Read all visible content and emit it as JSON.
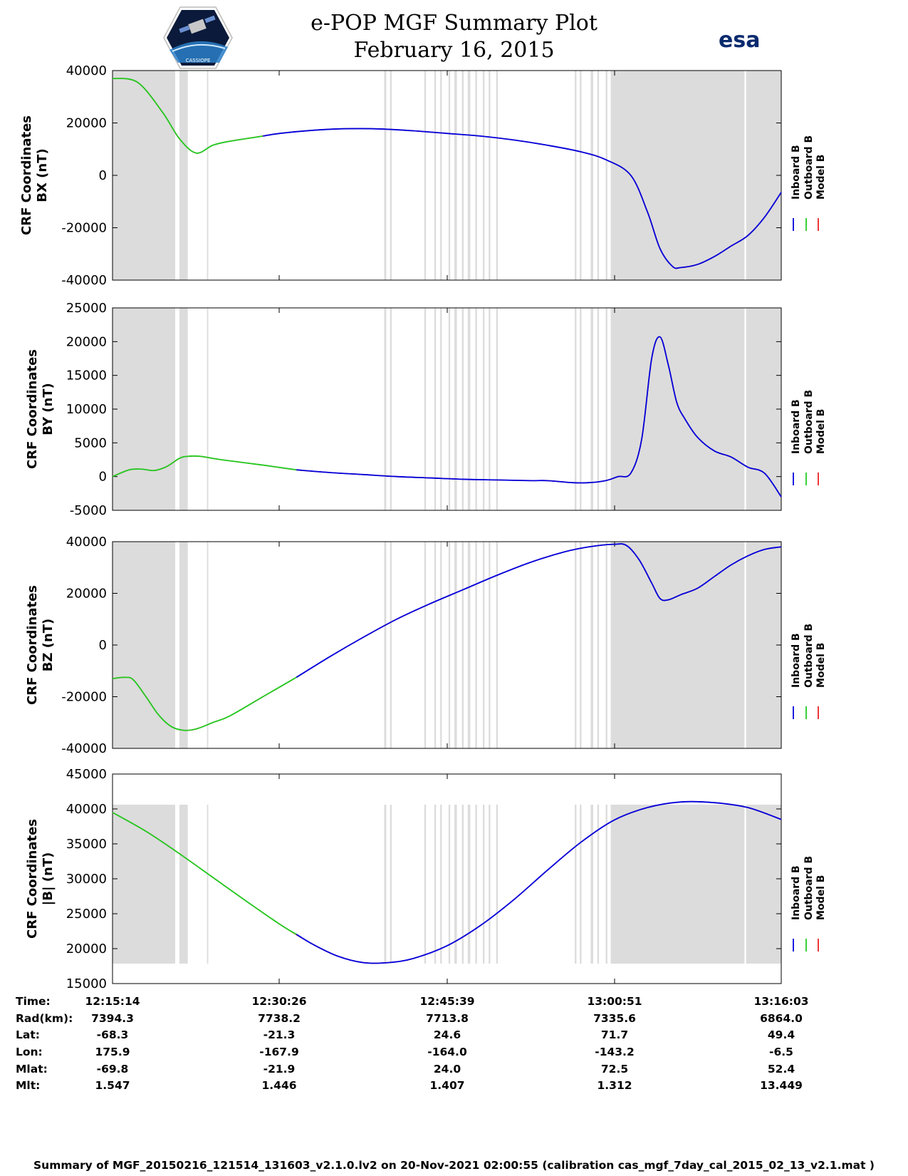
{
  "header": {
    "title_line1": "e-POP MGF Summary Plot",
    "title_line2": "February 16, 2015"
  },
  "logos": {
    "left_logo_name": "cassiope-mission-logo",
    "left_logo_text": "CASSIOPE",
    "right_logo_name": "esa-logo",
    "right_logo_text": "esa"
  },
  "legend": {
    "labels": [
      "Inboard B",
      "Outboard B",
      "Model B"
    ],
    "colors": [
      "#0000dd",
      "#22cc22",
      "#ee2222"
    ]
  },
  "colors": {
    "inboard": "#0000dd",
    "outboard": "#22cc22",
    "model": "#ee2222",
    "gray_band": "#dcdcdc"
  },
  "chart_data": [
    {
      "type": "line",
      "ylabel_line1": "CRF Coordinates",
      "ylabel_line2": "BX (nT)",
      "ylim": [
        -40000,
        40000
      ],
      "yticks": [
        40000,
        20000,
        0,
        -20000,
        -40000
      ],
      "ytick_labels": [
        "40000",
        "20000",
        "0",
        "-20000",
        "-40000"
      ],
      "x_minutes": [
        0,
        3,
        6,
        8,
        10,
        12,
        14,
        17,
        20,
        24,
        28,
        32,
        36,
        40,
        44,
        48,
        52,
        56,
        59,
        62,
        64,
        65.5,
        67,
        68,
        70,
        72,
        74,
        76,
        78,
        80
      ],
      "values": [
        37000,
        35500,
        24000,
        14000,
        8500,
        11500,
        13000,
        14500,
        16000,
        17200,
        17800,
        17700,
        17000,
        16000,
        15000,
        13500,
        11500,
        9000,
        6000,
        0,
        -14000,
        -28000,
        -34800,
        -35200,
        -34000,
        -31000,
        -27000,
        -23000,
        -16000,
        -6500
      ],
      "outboard_until_minute": 18
    },
    {
      "type": "line",
      "ylabel_line1": "CRF Coordinates",
      "ylabel_line2": "BY (nT)",
      "ylim": [
        -5000,
        25000
      ],
      "yticks": [
        25000,
        20000,
        15000,
        10000,
        5000,
        0,
        -5000
      ],
      "ytick_labels": [
        "25000",
        "20000",
        "15000",
        "10000",
        "5000",
        "0",
        "-5000"
      ],
      "x_minutes": [
        0,
        2,
        3.5,
        5,
        6.5,
        8,
        9,
        10.5,
        13,
        18,
        22,
        26,
        30,
        34,
        38,
        42,
        46,
        50,
        52,
        55,
        57,
        59,
        60.5,
        62,
        63.3,
        64.5,
        65.5,
        66.5,
        67.5,
        68.5,
        70,
        72,
        74,
        76,
        78,
        80
      ],
      "values": [
        0,
        1000,
        1100,
        900,
        1500,
        2700,
        3000,
        3000,
        2500,
        1700,
        1000,
        600,
        300,
        0,
        -200,
        -400,
        -500,
        -600,
        -600,
        -900,
        -900,
        -600,
        0,
        500,
        5500,
        17500,
        20700,
        16500,
        11000,
        8500,
        5800,
        3800,
        2900,
        1400,
        500,
        -3000
      ],
      "outboard_until_minute": 22
    },
    {
      "type": "line",
      "ylabel_line1": "CRF Coordinates",
      "ylabel_line2": "BZ (nT)",
      "ylim": [
        -40000,
        40000
      ],
      "yticks": [
        40000,
        20000,
        0,
        -20000,
        -40000
      ],
      "ytick_labels": [
        "40000",
        "20000",
        "0",
        "-20000",
        "-40000"
      ],
      "x_minutes": [
        0,
        1.5,
        2.5,
        4,
        5.5,
        7,
        8.5,
        10,
        12,
        14,
        18,
        22,
        26,
        30,
        34,
        38,
        42,
        46,
        50,
        54,
        57,
        60,
        61.5,
        63,
        64.5,
        65.5,
        66.5,
        68,
        70,
        72,
        74,
        76,
        78,
        80
      ],
      "values": [
        -13000,
        -12500,
        -13500,
        -20000,
        -27000,
        -31500,
        -33000,
        -32500,
        -30000,
        -27500,
        -20000,
        -12500,
        -4500,
        3000,
        10000,
        16000,
        21500,
        27000,
        32000,
        36000,
        38000,
        39000,
        38500,
        33000,
        24000,
        18000,
        17500,
        19500,
        22000,
        26500,
        31000,
        34500,
        37000,
        38000
      ],
      "outboard_until_minute": 22
    },
    {
      "type": "line",
      "ylabel_line1": "CRF Coordinates",
      "ylabel_line2": "|B| (nT)",
      "ylim": [
        15000,
        45000
      ],
      "yticks": [
        45000,
        40000,
        35000,
        30000,
        25000,
        20000,
        15000
      ],
      "ytick_labels": [
        "45000",
        "40000",
        "35000",
        "30000",
        "25000",
        "20000",
        "15000"
      ],
      "x_minutes": [
        0,
        4,
        8,
        12,
        16,
        20,
        24,
        27,
        30,
        33,
        36,
        40,
        44,
        48,
        52,
        56,
        60,
        64,
        68,
        72,
        76,
        80
      ],
      "values": [
        39500,
        36800,
        33600,
        30200,
        26800,
        23500,
        20600,
        18900,
        18000,
        18000,
        18600,
        20400,
        23300,
        27000,
        31200,
        35200,
        38400,
        40200,
        41000,
        40900,
        40200,
        38500
      ],
      "outboard_until_minute": 22
    }
  ],
  "gray_bands_minutes": [
    [
      0,
      7.5
    ],
    [
      8,
      9.0
    ],
    [
      11.3,
      11.45
    ],
    [
      32.5,
      32.75
    ],
    [
      33.2,
      33.4
    ],
    [
      37.3,
      37.5
    ],
    [
      38.5,
      38.7
    ],
    [
      39.2,
      39.4
    ],
    [
      40.2,
      40.4
    ],
    [
      40.9,
      41.2
    ],
    [
      41.8,
      42.0
    ],
    [
      42.5,
      42.8
    ],
    [
      43.4,
      43.6
    ],
    [
      44.3,
      44.5
    ],
    [
      45.0,
      45.2
    ],
    [
      45.9,
      46.1
    ],
    [
      55.3,
      55.5
    ],
    [
      55.9,
      56.1
    ],
    [
      57.2,
      57.5
    ],
    [
      58.0,
      58.2
    ],
    [
      59.0,
      59.2
    ],
    [
      59.6,
      75.6
    ],
    [
      75.8,
      80
    ]
  ],
  "info_table": {
    "row_labels": [
      "Time:",
      "Rad(km):",
      "Lat:",
      "Lon:",
      "Mlat:",
      "Mlt:"
    ],
    "columns": [
      [
        "12:15:14",
        "7394.3",
        "-68.3",
        "175.9",
        "-69.8",
        "1.547"
      ],
      [
        "12:30:26",
        "7738.2",
        "-21.3",
        "-167.9",
        "-21.9",
        "1.446"
      ],
      [
        "12:45:39",
        "7713.8",
        "24.6",
        "-164.0",
        "24.0",
        "1.407"
      ],
      [
        "13:00:51",
        "7335.6",
        "71.7",
        "-143.2",
        "72.5",
        "1.312"
      ],
      [
        "13:16:03",
        "6864.0",
        "49.4",
        "-6.5",
        "52.4",
        "13.449"
      ]
    ]
  },
  "footer": "Summary of MGF_20150216_121514_131603_v2.1.0.lv2 on 20-Nov-2021 02:00:55 (calibration cas_mgf_7day_cal_2015_02_13_v2.1.mat )"
}
